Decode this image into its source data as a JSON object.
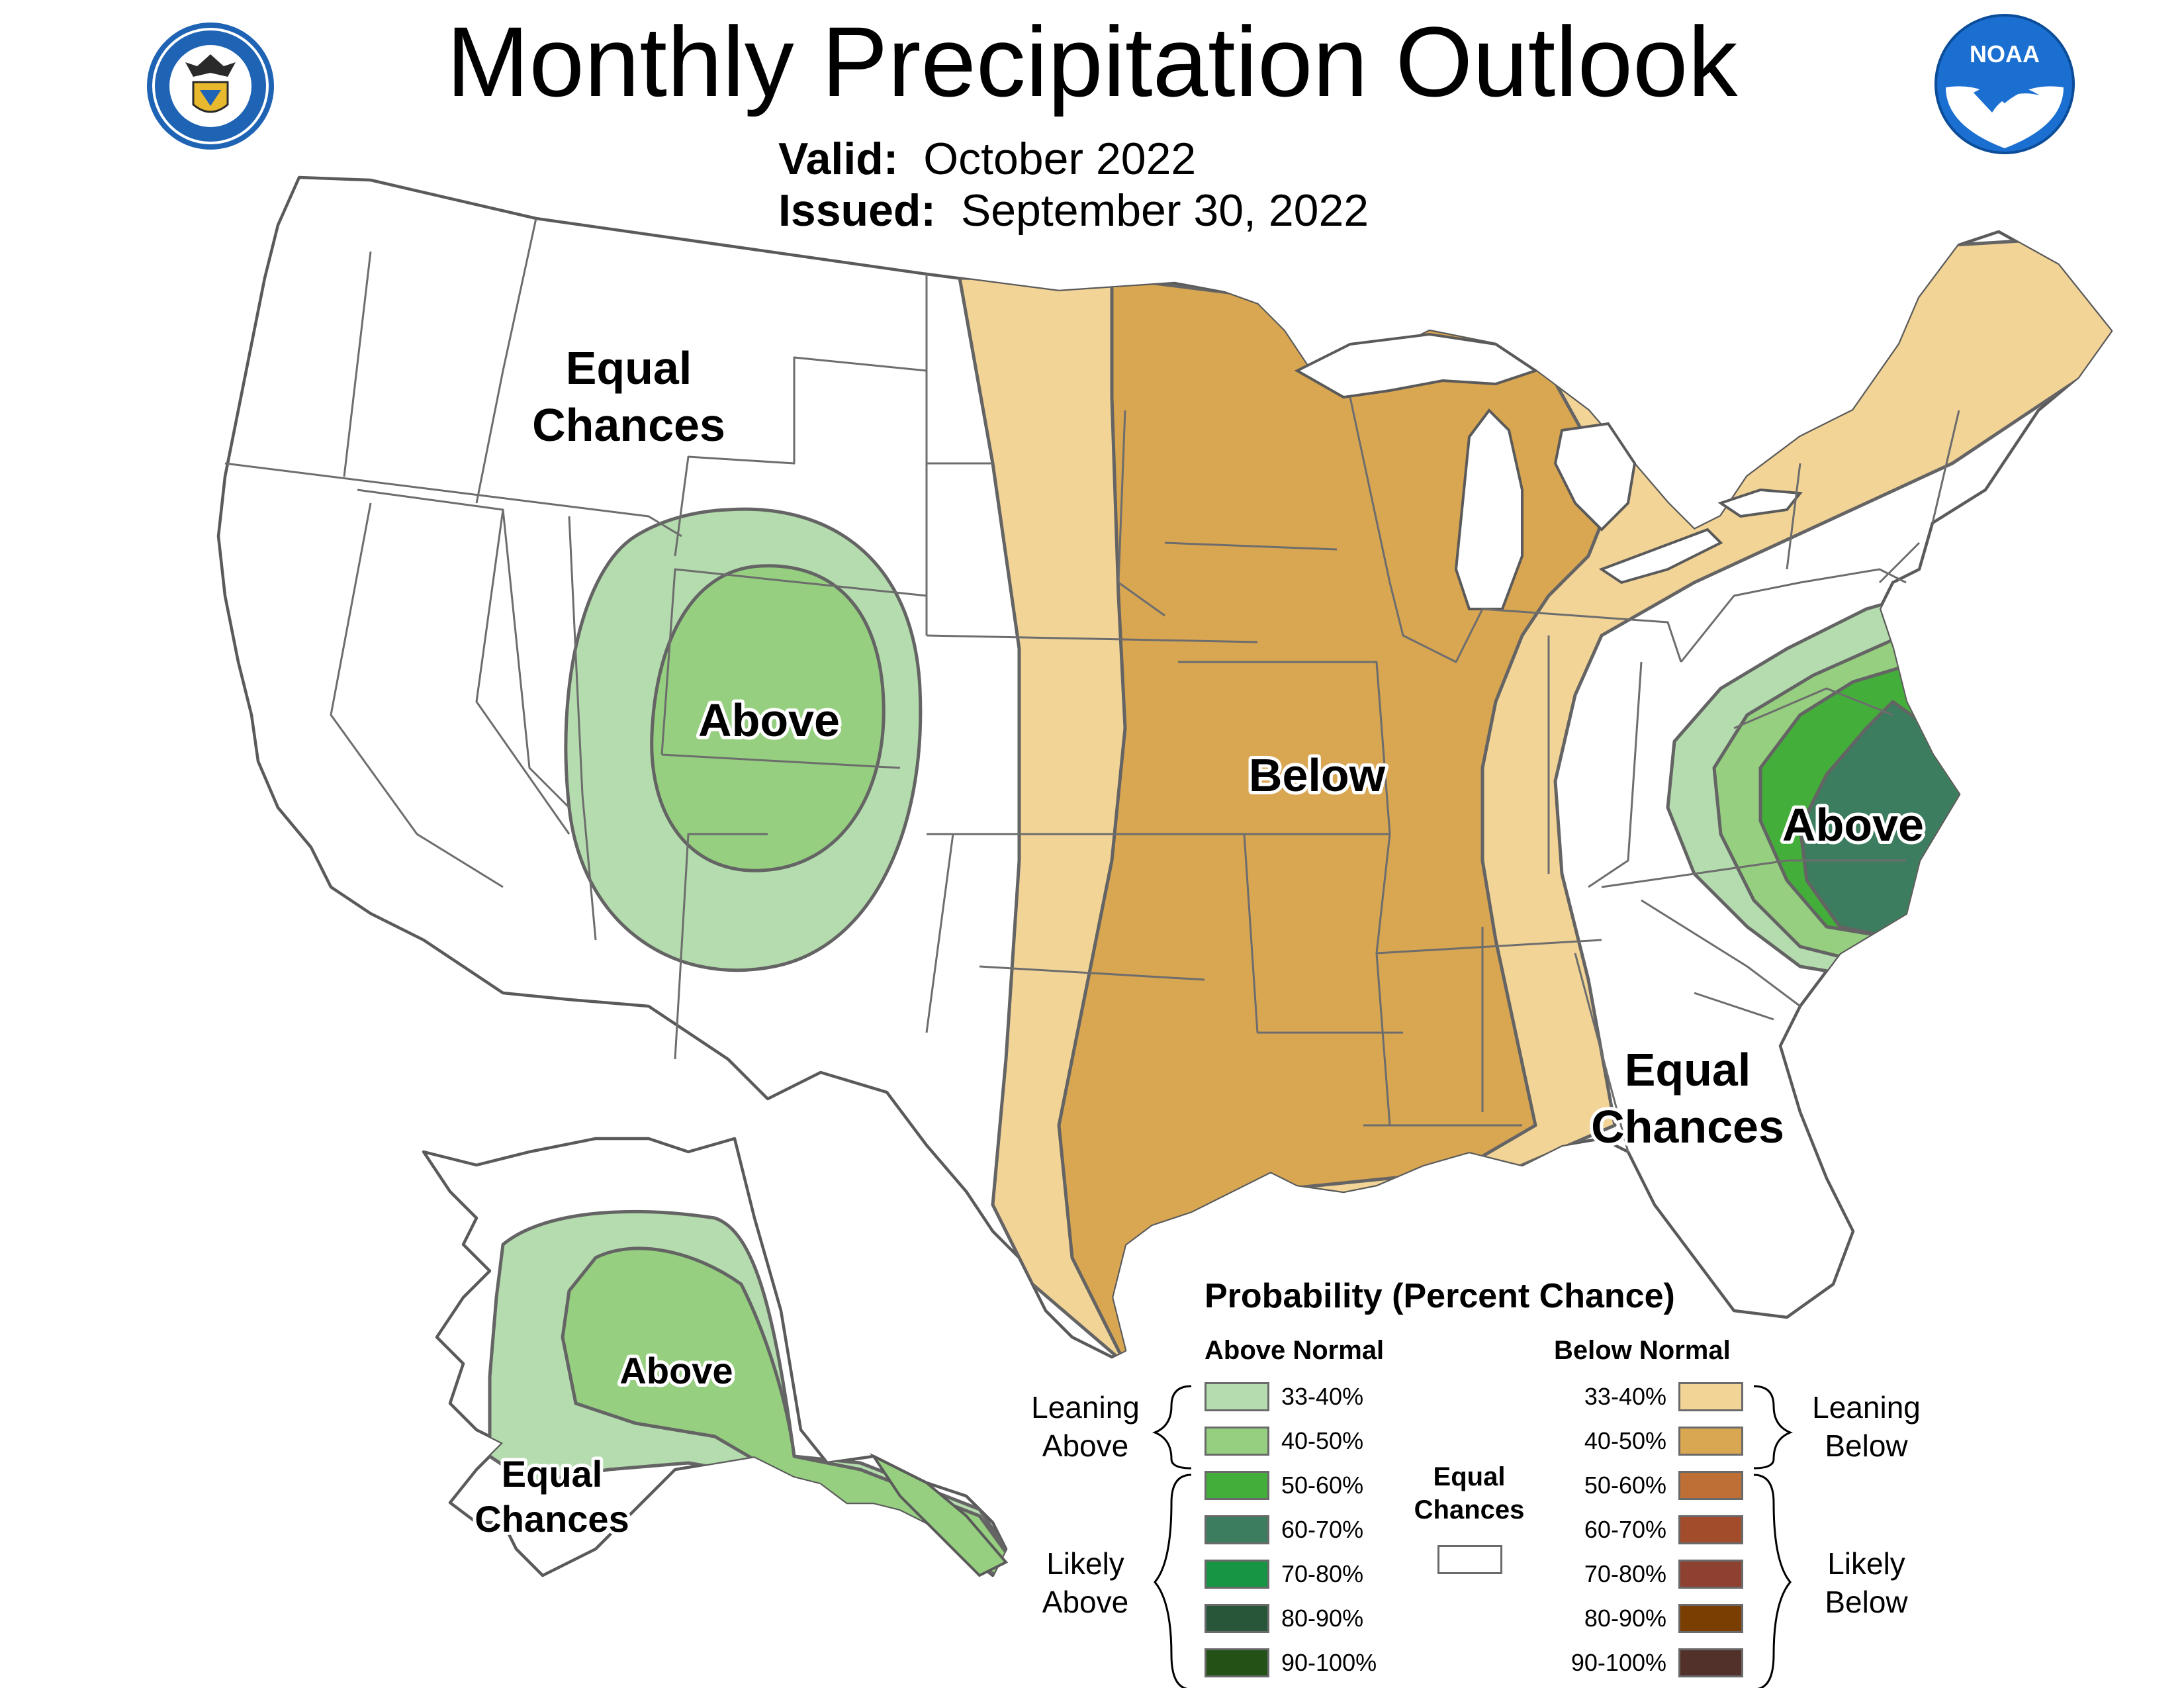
{
  "header": {
    "title": "Monthly Precipitation Outlook",
    "valid_label": "Valid:",
    "valid_value": "October 2022",
    "issued_label": "Issued:",
    "issued_value": "September 30, 2022"
  },
  "logos": {
    "left": "department-of-commerce-seal-icon",
    "right": "noaa-logo-icon",
    "noaa_text": "NOAA"
  },
  "map_labels": {
    "nw_equal": [
      "Equal",
      "Chances"
    ],
    "west_above": "Above",
    "central_below": "Below",
    "east_above": "Above",
    "se_equal": [
      "Equal",
      "Chances"
    ],
    "ak_above": "Above",
    "ak_equal": [
      "Equal",
      "Chances"
    ]
  },
  "colors": {
    "above_33_40": "#b5dcae",
    "above_40_50": "#95cf7f",
    "above_50_60": "#44ae3a",
    "above_60_70": "#3b7d5e",
    "above_70_80": "#179444",
    "above_80_90": "#275639",
    "above_90_100": "#245116",
    "below_33_40": "#f2d497",
    "below_40_50": "#d9a652",
    "below_50_60": "#bd6f35",
    "below_60_70": "#a24c2c",
    "below_70_80": "#8f4131",
    "below_80_90": "#7a3e00",
    "below_90_100": "#52312a",
    "equal": "#ffffff"
  },
  "legend": {
    "title": "Probability (Percent Chance)",
    "above_header": "Above Normal",
    "below_header": "Below Normal",
    "leaning_above": [
      "Leaning",
      "Above"
    ],
    "likely_above": [
      "Likely",
      "Above"
    ],
    "leaning_below": [
      "Leaning",
      "Below"
    ],
    "likely_below": [
      "Likely",
      "Below"
    ],
    "equal": [
      "Equal",
      "Chances"
    ],
    "above_rows": [
      {
        "range": "33-40%",
        "color": "#b5dcae"
      },
      {
        "range": "40-50%",
        "color": "#95cf7f"
      },
      {
        "range": "50-60%",
        "color": "#44ae3a"
      },
      {
        "range": "60-70%",
        "color": "#3b7d5e"
      },
      {
        "range": "70-80%",
        "color": "#179444"
      },
      {
        "range": "80-90%",
        "color": "#275639"
      },
      {
        "range": "90-100%",
        "color": "#245116"
      }
    ],
    "below_rows": [
      {
        "range": "33-40%",
        "color": "#f2d497"
      },
      {
        "range": "40-50%",
        "color": "#d9a652"
      },
      {
        "range": "50-60%",
        "color": "#bd6f35"
      },
      {
        "range": "60-70%",
        "color": "#a24c2c"
      },
      {
        "range": "70-80%",
        "color": "#8f4131"
      },
      {
        "range": "80-90%",
        "color": "#7a3e00"
      },
      {
        "range": "90-100%",
        "color": "#52312a"
      }
    ]
  }
}
